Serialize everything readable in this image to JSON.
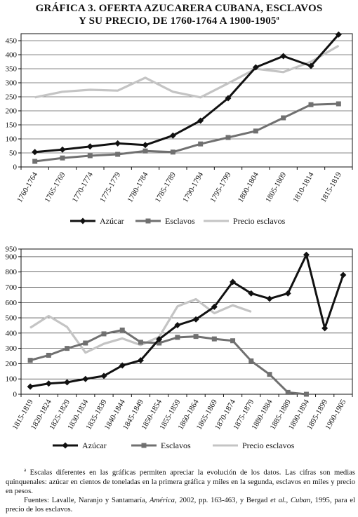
{
  "title_line1": "GRÁFICA 3. OFERTA AZUCARERA CUBANA, ESCLAVOS",
  "title_line2": "Y SU PRECIO, DE 1760-1764 A 1900-1905",
  "title_mark": "a",
  "colors": {
    "azucar": "#111111",
    "esclavos": "#707070",
    "precio": "#c4c4c4"
  },
  "chart_data": [
    {
      "type": "line",
      "ylim": [
        0,
        475
      ],
      "yticks": [
        0,
        50,
        100,
        150,
        200,
        250,
        300,
        350,
        400,
        450
      ],
      "grid": "horizontal",
      "legend_position": "bottom",
      "categories": [
        "1760-1764",
        "1765-1769",
        "1770-1774",
        "1775-1779",
        "1780-1784",
        "1785-1789",
        "1790-1794",
        "1795-1799",
        "1800-1804",
        "1805-1809",
        "1810-1814",
        "1815-1819"
      ],
      "series": [
        {
          "name": "Azúcar",
          "color_key": "azucar",
          "marker": "diamond",
          "values": [
            53,
            62,
            73,
            84,
            78,
            112,
            165,
            245,
            355,
            395,
            360,
            472
          ]
        },
        {
          "name": "Esclavos",
          "color_key": "esclavos",
          "marker": "square",
          "values": [
            20,
            32,
            40,
            45,
            57,
            53,
            82,
            105,
            128,
            175,
            222,
            225
          ]
        },
        {
          "name": "Precio esclavos",
          "color_key": "precio",
          "marker": "none",
          "values": [
            248,
            268,
            275,
            272,
            318,
            268,
            248,
            298,
            350,
            338,
            375,
            432
          ]
        }
      ]
    },
    {
      "type": "line",
      "ylim": [
        0,
        950
      ],
      "yticks": [
        0,
        100,
        200,
        300,
        400,
        500,
        600,
        700,
        800,
        900,
        950
      ],
      "grid": "horizontal",
      "legend_position": "bottom",
      "categories": [
        "1815-1819",
        "1820-1824",
        "1825-1829",
        "1830-1834",
        "1835-1839",
        "1840-1844",
        "1845-1849",
        "1850-1854",
        "1855-1859",
        "1860-1864",
        "1865-1869",
        "1870-1874",
        "1875-1879",
        "1880-1884",
        "1885-1889",
        "1890-1894",
        "1895-1899",
        "1900-1905"
      ],
      "series": [
        {
          "name": "Azúcar",
          "color_key": "azucar",
          "marker": "diamond",
          "values": [
            50,
            70,
            78,
            100,
            120,
            188,
            222,
            360,
            452,
            490,
            572,
            735,
            660,
            625,
            660,
            912,
            432,
            780
          ]
        },
        {
          "name": "Esclavos",
          "color_key": "esclavos",
          "marker": "square",
          "values": [
            222,
            255,
            300,
            335,
            395,
            420,
            340,
            335,
            372,
            378,
            362,
            350,
            218,
            130,
            12,
            0,
            null,
            null
          ]
        },
        {
          "name": "Precio esclavos",
          "color_key": "precio",
          "marker": "none",
          "values": [
            435,
            512,
            440,
            272,
            330,
            365,
            322,
            375,
            575,
            622,
            530,
            582,
            540,
            null,
            null,
            null,
            null,
            null
          ]
        }
      ]
    }
  ],
  "notes": {
    "footnote_mark": "a",
    "footnote": "Escalas diferentes en las gráficas permiten apreciar la evolución de los datos. Las cifras son medias quinquenales: azúcar en cientos de toneladas en la primera gráfica y miles en la segunda, esclavos en miles y precio en pesos.",
    "sources_prefix": "Fuentes: Lavalle, Naranjo y Santamaría, ",
    "sources_title1": "América",
    "sources_mid": ", 2002, pp. 163-463, y Bergad ",
    "sources_etal": "et al.",
    "sources_comma": ", ",
    "sources_title2": "Cuban",
    "sources_suffix": ", 1995, para el precio de los esclavos."
  }
}
